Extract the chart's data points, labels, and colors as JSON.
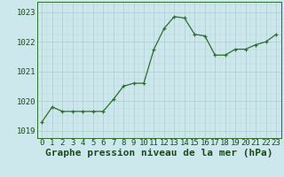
{
  "x": [
    0,
    1,
    2,
    3,
    4,
    5,
    6,
    7,
    8,
    9,
    10,
    11,
    12,
    13,
    14,
    15,
    16,
    17,
    18,
    19,
    20,
    21,
    22,
    23
  ],
  "y": [
    1019.3,
    1019.8,
    1019.65,
    1019.65,
    1019.65,
    1019.65,
    1019.65,
    1020.05,
    1020.5,
    1020.6,
    1020.6,
    1021.75,
    1022.45,
    1022.85,
    1022.8,
    1022.25,
    1022.2,
    1021.55,
    1021.55,
    1021.75,
    1021.75,
    1021.9,
    1022.0,
    1022.25
  ],
  "line_color": "#2d6e2d",
  "marker_color": "#2d6e2d",
  "bg_color": "#cce8ec",
  "grid_color": "#aaccd0",
  "xlabel": "Graphe pression niveau de la mer (hPa)",
  "xlabel_color": "#1a4a1a",
  "xlabel_fontsize": 8,
  "ytick_labels": [
    "1019",
    "1020",
    "1021",
    "1022",
    "1023"
  ],
  "ytick_values": [
    1019,
    1020,
    1021,
    1022,
    1023
  ],
  "ylim": [
    1018.75,
    1023.35
  ],
  "xlim": [
    -0.5,
    23.5
  ],
  "xtick_labels": [
    "0",
    "1",
    "2",
    "3",
    "4",
    "5",
    "6",
    "7",
    "8",
    "9",
    "10",
    "11",
    "12",
    "13",
    "14",
    "15",
    "16",
    "17",
    "18",
    "19",
    "20",
    "21",
    "22",
    "23"
  ],
  "tick_fontsize": 6.5,
  "tick_color": "#1a4a1a",
  "spine_color": "#2d6e2d",
  "grid_major_color": "#aaccd0",
  "grid_minor_color": "#bcd8dc"
}
